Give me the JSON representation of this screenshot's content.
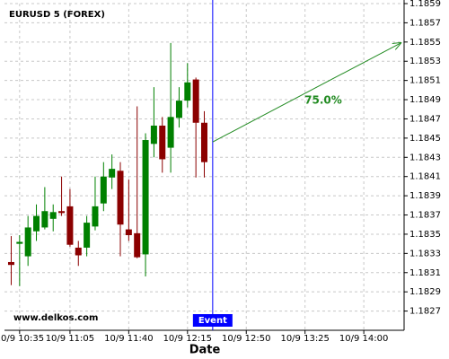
{
  "chart_data": {
    "type": "candlestick",
    "title": "EURUSD 5 (FOREX)",
    "x_label": "Date",
    "watermark": "www.delkos.com",
    "x": [
      "10/9 10:30",
      "10/9 10:35",
      "10/9 10:40",
      "10/9 10:45",
      "10/9 10:50",
      "10/9 10:55",
      "10/9 11:00",
      "10/9 11:05",
      "10/9 11:10",
      "10/9 11:15",
      "10/9 11:20",
      "10/9 11:25",
      "10/9 11:30",
      "10/9 11:35",
      "10/9 11:40",
      "10/9 11:45",
      "10/9 11:50",
      "10/9 11:55",
      "10/9 12:00",
      "10/9 12:05",
      "10/9 12:10",
      "10/9 12:15",
      "10/9 12:20",
      "10/9 12:25"
    ],
    "open": [
      1.18321,
      1.1834,
      1.18327,
      1.18353,
      1.18357,
      1.18366,
      1.18374,
      1.18379,
      1.18336,
      1.18336,
      1.18358,
      1.18382,
      1.18409,
      1.18416,
      1.18355,
      1.18351,
      1.18329,
      1.18444,
      1.18463,
      1.1844,
      1.18471,
      1.18489,
      1.18511,
      1.18466
    ],
    "high": [
      1.18348,
      1.18349,
      1.18369,
      1.18381,
      1.18399,
      1.18381,
      1.1841,
      1.18397,
      1.18343,
      1.18369,
      1.1841,
      1.18425,
      1.18433,
      1.18425,
      1.18407,
      1.18483,
      1.18455,
      1.18503,
      1.18472,
      1.18549,
      1.18503,
      1.18528,
      1.18513,
      1.18478
    ],
    "low": [
      1.18297,
      1.18296,
      1.18317,
      1.18343,
      1.18355,
      1.18353,
      1.18369,
      1.18337,
      1.18317,
      1.18327,
      1.18354,
      1.18374,
      1.18397,
      1.18327,
      1.18343,
      1.18325,
      1.18306,
      1.1843,
      1.18414,
      1.18414,
      1.18461,
      1.18482,
      1.18409,
      1.18409
    ],
    "close": [
      1.18318,
      1.18342,
      1.18357,
      1.18369,
      1.18374,
      1.18373,
      1.18372,
      1.18339,
      1.18328,
      1.18362,
      1.18379,
      1.1841,
      1.18418,
      1.1836,
      1.18349,
      1.18326,
      1.18448,
      1.18463,
      1.18428,
      1.18472,
      1.18489,
      1.18508,
      1.18466,
      1.18425
    ],
    "up_color": "#008000",
    "down_color": "#8b0000",
    "xlim": [
      "10/9 10:26",
      "10/9 14:24"
    ],
    "xticks": [
      "10/9 10:35",
      "10/9 11:05",
      "10/9 11:40",
      "10/9 12:15",
      "10/9 12:50",
      "10/9 13:25",
      "10/9 14:00"
    ],
    "ylim": [
      1.1825,
      1.1859
    ],
    "yticks": [
      1.1827,
      1.1829,
      1.1831,
      1.1833,
      1.1835,
      1.1837,
      1.1839,
      1.1841,
      1.1843,
      1.1845,
      1.1847,
      1.1849,
      1.1851,
      1.1853,
      1.1855,
      1.1857,
      1.1859
    ],
    "grid": true,
    "event": {
      "x": "10/9 12:30",
      "label": "Event",
      "color": "#0000ff"
    },
    "forecast": {
      "x": [
        "10/9 12:30",
        "10/9 14:22"
      ],
      "values": [
        1.18446,
        1.18549
      ],
      "label": "75.0%",
      "color": "#228b22"
    }
  }
}
